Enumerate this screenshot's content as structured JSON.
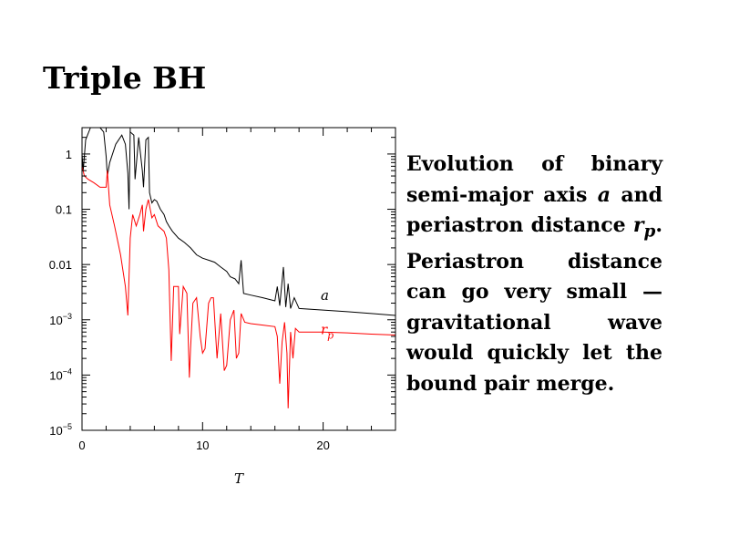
{
  "slide": {
    "title": "Triple BH",
    "description_parts": [
      "Evolution of binary semi-major axis ",
      "a",
      " and periastron distance ",
      "r",
      "p",
      ". Periastron distance can go very small — gravitational wave would quickly let the bound pair merge."
    ]
  },
  "chart_data": {
    "type": "line",
    "xlabel": "T",
    "ylabel": "",
    "title": "",
    "xlim": [
      0,
      26
    ],
    "ylim": [
      1e-05,
      3
    ],
    "yscale": "log",
    "x_ticks": [
      0,
      10,
      20
    ],
    "x_tick_labels": [
      "0",
      "10",
      "20"
    ],
    "y_ticks": [
      1e-05,
      0.0001,
      0.001,
      0.01,
      0.1,
      1
    ],
    "y_tick_labels": [
      {
        "base": "10",
        "exp": "−5"
      },
      {
        "base": "10",
        "exp": "−4"
      },
      {
        "base": "10",
        "exp": "−3"
      },
      {
        "base": "0.01",
        "exp": ""
      },
      {
        "base": "0.1",
        "exp": ""
      },
      {
        "base": "1",
        "exp": ""
      }
    ],
    "grid": false,
    "series": [
      {
        "name": "a",
        "label_base": "a",
        "label_sub": "",
        "color": "#000000",
        "label_at": [
          19.8,
          0.0023
        ],
        "points": [
          [
            0,
            1.0
          ],
          [
            0.1,
            0.5
          ],
          [
            0.3,
            1.8
          ],
          [
            0.7,
            3.0
          ],
          [
            1.5,
            3.0
          ],
          [
            1.8,
            2.5
          ],
          [
            2.0,
            0.9
          ],
          [
            2.1,
            0.4
          ],
          [
            2.3,
            0.7
          ],
          [
            2.8,
            1.5
          ],
          [
            3.3,
            2.2
          ],
          [
            3.6,
            1.5
          ],
          [
            3.8,
            0.45
          ],
          [
            3.9,
            0.1
          ],
          [
            4.0,
            2.5
          ],
          [
            4.3,
            2.2
          ],
          [
            4.4,
            0.35
          ],
          [
            4.7,
            2.0
          ],
          [
            5.0,
            0.5
          ],
          [
            5.1,
            0.25
          ],
          [
            5.3,
            1.8
          ],
          [
            5.5,
            2.0
          ],
          [
            5.6,
            0.2
          ],
          [
            5.8,
            0.13
          ],
          [
            6.0,
            0.15
          ],
          [
            6.2,
            0.14
          ],
          [
            6.5,
            0.1
          ],
          [
            6.8,
            0.08
          ],
          [
            7.0,
            0.06
          ],
          [
            7.2,
            0.05
          ],
          [
            7.5,
            0.04
          ],
          [
            8.0,
            0.03
          ],
          [
            8.5,
            0.025
          ],
          [
            9.0,
            0.02
          ],
          [
            9.5,
            0.015
          ],
          [
            10.0,
            0.013
          ],
          [
            10.5,
            0.012
          ],
          [
            11.0,
            0.011
          ],
          [
            11.5,
            0.009
          ],
          [
            12.0,
            0.0075
          ],
          [
            12.3,
            0.006
          ],
          [
            12.7,
            0.0055
          ],
          [
            13.0,
            0.0045
          ],
          [
            13.2,
            0.012
          ],
          [
            13.4,
            0.003
          ],
          [
            14.0,
            0.0028
          ],
          [
            15.0,
            0.0025
          ],
          [
            16.0,
            0.0022
          ],
          [
            16.2,
            0.004
          ],
          [
            16.4,
            0.0018
          ],
          [
            16.7,
            0.009
          ],
          [
            16.9,
            0.0017
          ],
          [
            17.1,
            0.0045
          ],
          [
            17.3,
            0.0016
          ],
          [
            17.6,
            0.0025
          ],
          [
            18.0,
            0.0016
          ],
          [
            20.0,
            0.0015
          ],
          [
            22.0,
            0.0014
          ],
          [
            24.0,
            0.0013
          ],
          [
            26.0,
            0.0012
          ]
        ]
      },
      {
        "name": "r_p",
        "label_base": "r",
        "label_sub": "p",
        "color": "#ff0000",
        "label_at": [
          19.8,
          0.00055
        ],
        "points": [
          [
            0,
            0.6
          ],
          [
            0.2,
            0.4
          ],
          [
            0.5,
            0.35
          ],
          [
            1.0,
            0.3
          ],
          [
            1.5,
            0.25
          ],
          [
            2.0,
            0.25
          ],
          [
            2.1,
            0.5
          ],
          [
            2.3,
            0.12
          ],
          [
            2.7,
            0.05
          ],
          [
            3.2,
            0.015
          ],
          [
            3.6,
            0.004
          ],
          [
            3.8,
            0.0012
          ],
          [
            4.0,
            0.03
          ],
          [
            4.2,
            0.08
          ],
          [
            4.5,
            0.05
          ],
          [
            4.8,
            0.08
          ],
          [
            5.0,
            0.12
          ],
          [
            5.1,
            0.04
          ],
          [
            5.3,
            0.1
          ],
          [
            5.5,
            0.15
          ],
          [
            5.8,
            0.07
          ],
          [
            6.0,
            0.08
          ],
          [
            6.3,
            0.05
          ],
          [
            6.8,
            0.04
          ],
          [
            7.0,
            0.03
          ],
          [
            7.2,
            0.008
          ],
          [
            7.4,
            0.00018
          ],
          [
            7.6,
            0.004
          ],
          [
            8.0,
            0.004
          ],
          [
            8.1,
            0.00055
          ],
          [
            8.4,
            0.004
          ],
          [
            8.7,
            0.003
          ],
          [
            8.9,
            9e-05
          ],
          [
            9.0,
            0.0003
          ],
          [
            9.2,
            0.002
          ],
          [
            9.5,
            0.0025
          ],
          [
            9.8,
            0.0005
          ],
          [
            10.0,
            0.00025
          ],
          [
            10.2,
            0.0003
          ],
          [
            10.5,
            0.002
          ],
          [
            10.7,
            0.0025
          ],
          [
            10.9,
            0.0025
          ],
          [
            11.2,
            0.0002
          ],
          [
            11.5,
            0.0013
          ],
          [
            11.8,
            0.00012
          ],
          [
            12.0,
            0.00015
          ],
          [
            12.3,
            0.001
          ],
          [
            12.6,
            0.0015
          ],
          [
            12.8,
            0.0002
          ],
          [
            13.0,
            0.00025
          ],
          [
            13.2,
            0.0013
          ],
          [
            13.5,
            0.0009
          ],
          [
            14.0,
            0.00085
          ],
          [
            15.0,
            0.0008
          ],
          [
            16.0,
            0.00075
          ],
          [
            16.2,
            0.0005
          ],
          [
            16.4,
            7e-05
          ],
          [
            16.6,
            0.0004
          ],
          [
            16.8,
            0.0009
          ],
          [
            17.0,
            0.00025
          ],
          [
            17.1,
            2.5e-05
          ],
          [
            17.3,
            0.0006
          ],
          [
            17.5,
            0.0002
          ],
          [
            17.7,
            0.0007
          ],
          [
            18.0,
            0.0006
          ],
          [
            20.0,
            0.0006
          ],
          [
            22.0,
            0.00058
          ],
          [
            24.0,
            0.00055
          ],
          [
            26.0,
            0.00053
          ]
        ]
      }
    ]
  }
}
